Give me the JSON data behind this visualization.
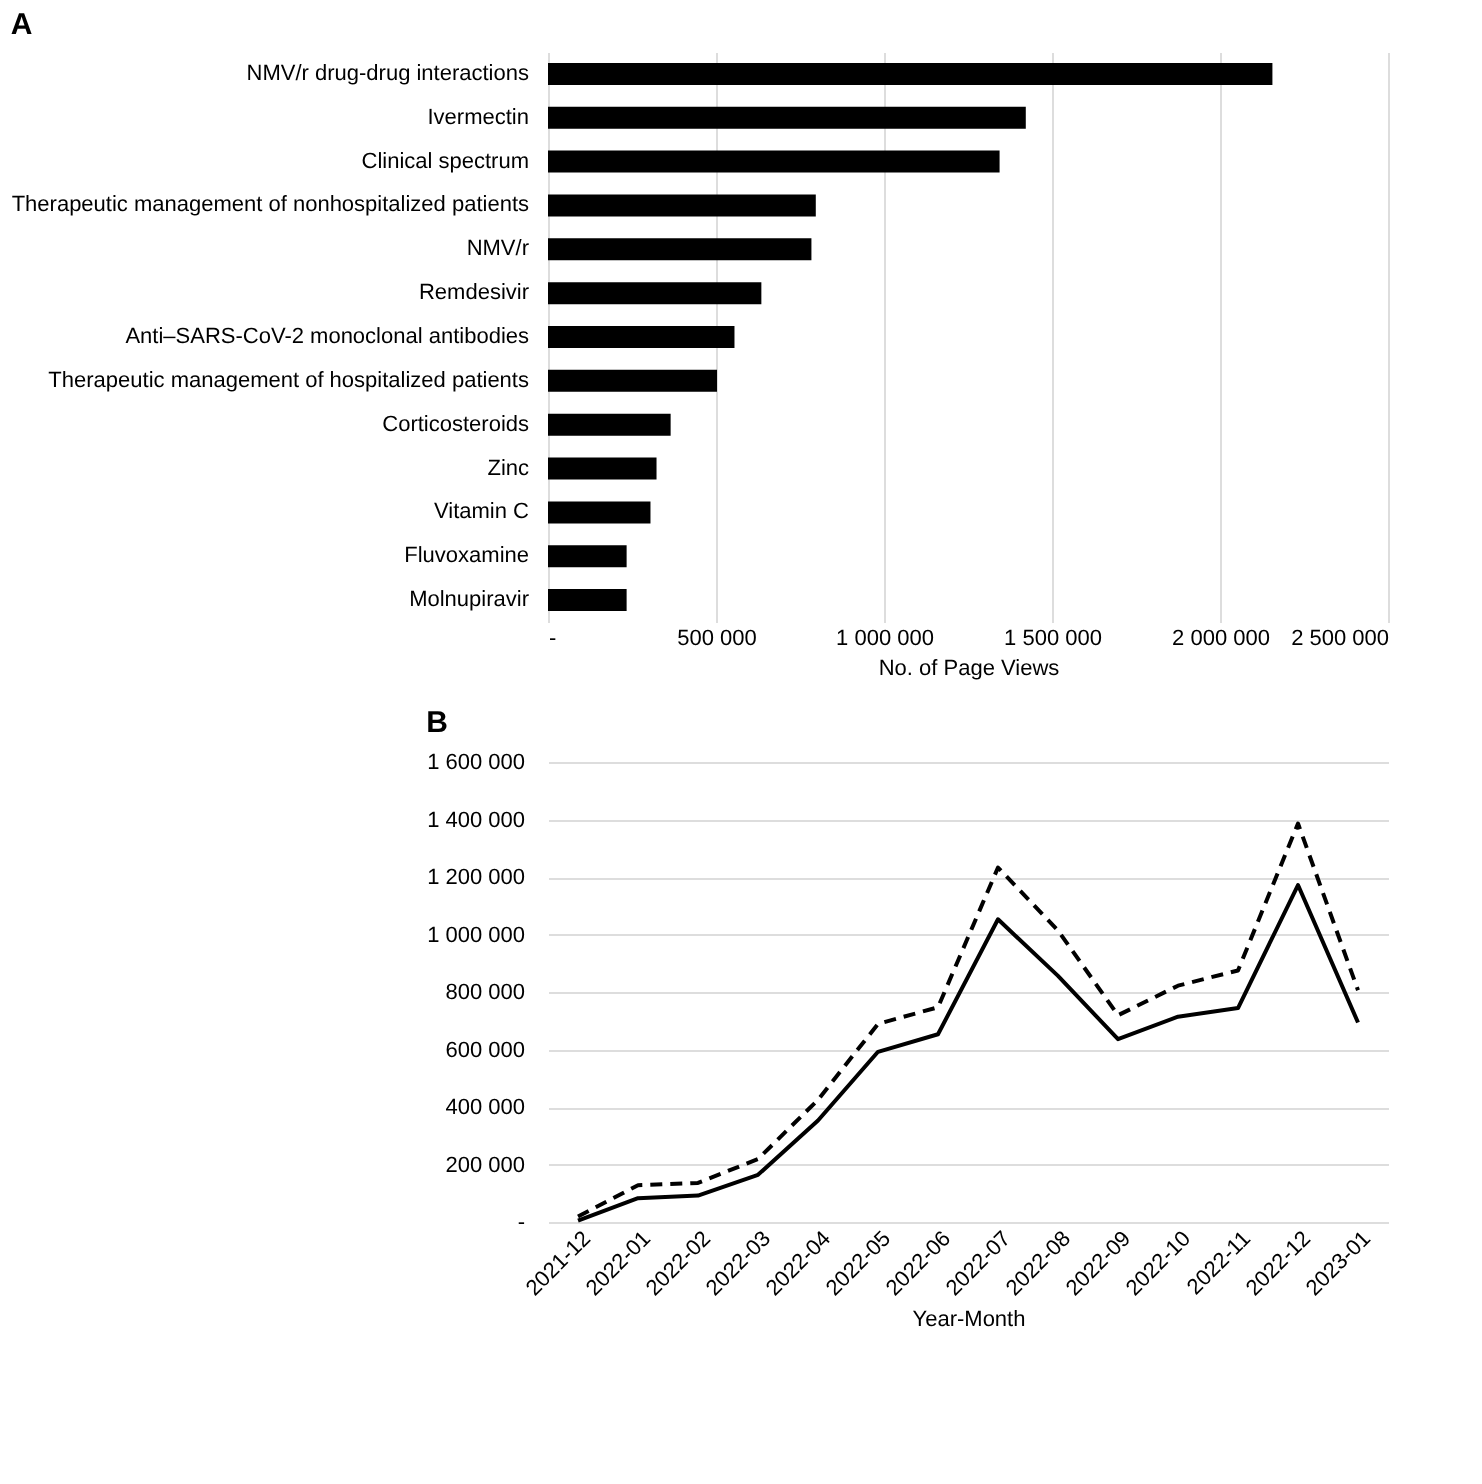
{
  "chart_data": [
    {
      "type": "bar",
      "title": "A",
      "orientation": "horizontal",
      "color": "#000000",
      "xlabel": "No. of Page Views",
      "grid": "x",
      "categories": [
        "NMV/r drug-drug interactions",
        "Ivermectin",
        "Clinical spectrum",
        "Therapeutic management of nonhospitalized patients",
        "NMV/r",
        "Remdesivir",
        "Anti–SARS-CoV-2 monoclonal antibodies",
        "Therapeutic management of hospitalized patients",
        "Corticosteroids",
        "Zinc",
        "Vitamin C",
        "Fluvoxamine",
        "Molnupiravir"
      ],
      "values": [
        2156000,
        1422000,
        1344000,
        797000,
        784000,
        635000,
        555000,
        503000,
        365000,
        323000,
        305000,
        234000,
        234000
      ],
      "xlim": [
        0,
        2500000
      ],
      "xticks": [
        {
          "value": 0,
          "label": "-"
        },
        {
          "value": 500000,
          "label": "500 000"
        },
        {
          "value": 1000000,
          "label": "1 000 000"
        },
        {
          "value": 1500000,
          "label": "1 500 000"
        },
        {
          "value": 2000000,
          "label": "2 000 000"
        },
        {
          "value": 2500000,
          "label": "2 500 000"
        }
      ]
    },
    {
      "type": "line",
      "title": "B",
      "xlabel": "Year-Month",
      "grid": "y",
      "categories": [
        "2021-12",
        "2022-01",
        "2022-02",
        "2022-03",
        "2022-04",
        "2022-05",
        "2022-06",
        "2022-07",
        "2022-08",
        "2022-09",
        "2022-10",
        "2022-11",
        "2022-12",
        "2023-01"
      ],
      "series": [
        {
          "color": "#000000",
          "line_style": "dashed",
          "values": [
            19000,
            128000,
            136000,
            219000,
            425000,
            689000,
            747000,
            1233000,
            1014000,
            719000,
            822000,
            875000,
            1386000,
            806000
          ]
        },
        {
          "color": "#000000",
          "line_style": "solid",
          "values": [
            5000,
            83000,
            92000,
            164000,
            353000,
            592000,
            653000,
            1053000,
            856000,
            636000,
            714000,
            744000,
            1172000,
            694000
          ]
        }
      ],
      "ylim": [
        0,
        1600000
      ],
      "yticks": [
        {
          "value": 0,
          "label": "-"
        },
        {
          "value": 200000,
          "label": "200 000"
        },
        {
          "value": 400000,
          "label": "400 000"
        },
        {
          "value": 600000,
          "label": "600 000"
        },
        {
          "value": 800000,
          "label": "800 000"
        },
        {
          "value": 1000000,
          "label": "1 000 000"
        },
        {
          "value": 1200000,
          "label": "1 200 000"
        },
        {
          "value": 1400000,
          "label": "1 400 000"
        },
        {
          "value": 1600000,
          "label": "1 600 000"
        }
      ]
    }
  ]
}
